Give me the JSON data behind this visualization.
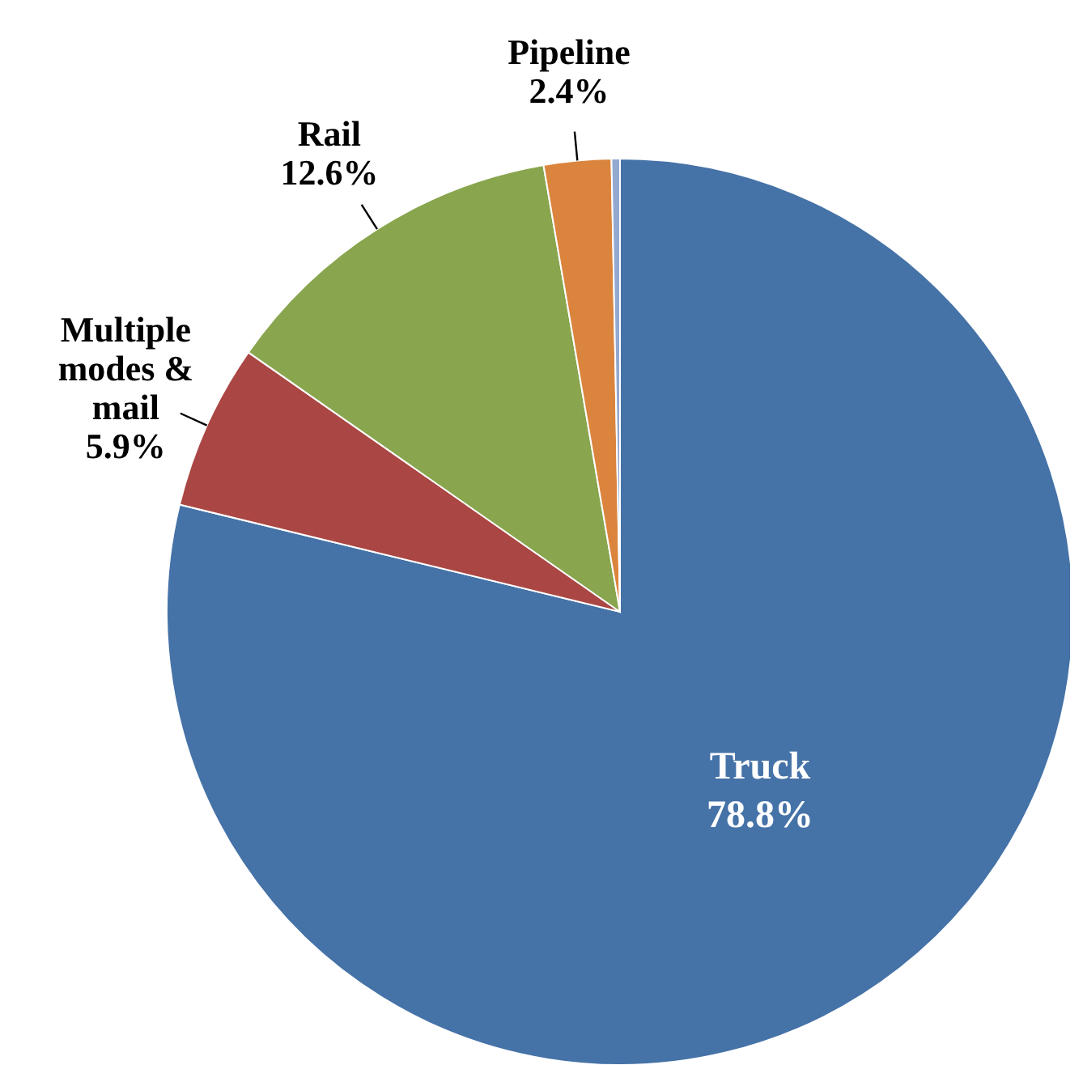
{
  "chart_data": {
    "type": "pie",
    "categories": [
      "Truck",
      "Multiple modes & mail",
      "Rail",
      "Pipeline",
      null
    ],
    "values": [
      78.8,
      5.9,
      12.6,
      2.4,
      0.3
    ],
    "colors": [
      "#4572a7",
      "#aa4643",
      "#89a54e",
      "#db843d",
      "#93a9cf"
    ],
    "value_labels": [
      "78.8%",
      "5.9%",
      "12.6%",
      "2.4%",
      null
    ]
  }
}
